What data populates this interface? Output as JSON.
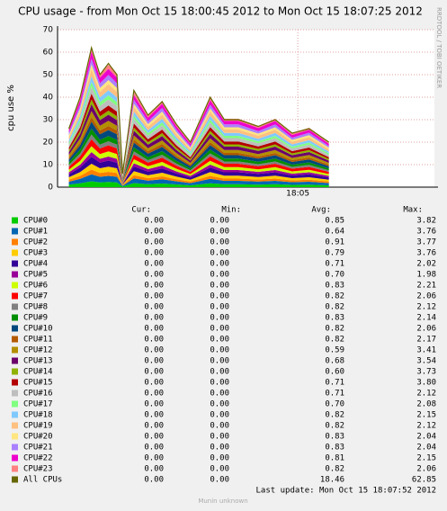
{
  "chart_data": {
    "type": "area",
    "stacked": true,
    "title": "CPU usage - from Mon Oct 15 18:00:45 2012 to Mon Oct 15 18:07:25 2012",
    "ylabel": "cpu use %",
    "side_text": "RRDTOOL / TOBI OETIKER",
    "ylim": [
      0,
      70
    ],
    "yticks": [
      0,
      10,
      20,
      30,
      40,
      50,
      60,
      70
    ],
    "grid": true,
    "xlim": [
      0.75,
      7.4167
    ],
    "xticks": [
      {
        "value": 5,
        "label": "18:05"
      }
    ],
    "x": [
      0.95,
      1.15,
      1.35,
      1.5,
      1.65,
      1.8,
      1.9,
      2.1,
      2.35,
      2.6,
      2.85,
      3.1,
      3.45,
      3.7,
      3.95,
      4.3,
      4.6,
      4.9,
      5.2,
      5.55
    ],
    "series": [
      {
        "name": "CPU#0",
        "color": "#00cc00",
        "values": [
          1.1,
          1.7,
          2.6,
          2.1,
          2.3,
          2.1,
          0.3,
          1.8,
          1.3,
          1.6,
          1.2,
          0.8,
          1.7,
          1.3,
          1.3,
          1.1,
          1.3,
          1.0,
          1.1,
          0.8
        ]
      },
      {
        "name": "CPU#1",
        "color": "#0066b3",
        "values": [
          1.3,
          2.0,
          3.1,
          2.5,
          2.7,
          2.5,
          0.3,
          2.1,
          1.6,
          1.9,
          1.4,
          1.0,
          2.0,
          1.5,
          1.5,
          1.4,
          1.5,
          1.2,
          1.3,
          1.0
        ]
      },
      {
        "name": "CPU#2",
        "color": "#ff8000",
        "values": [
          0.9,
          1.3,
          2.1,
          1.7,
          1.8,
          1.7,
          0.2,
          1.4,
          1.1,
          1.3,
          0.9,
          0.7,
          1.3,
          1.0,
          1.0,
          0.9,
          1.0,
          0.8,
          0.9,
          0.7
        ]
      },
      {
        "name": "CPU#3",
        "color": "#ffcc00",
        "values": [
          1.1,
          1.7,
          2.6,
          2.1,
          2.3,
          2.1,
          0.3,
          1.8,
          1.3,
          1.6,
          1.2,
          0.8,
          1.7,
          1.3,
          1.3,
          1.1,
          1.3,
          1.0,
          1.1,
          0.8
        ]
      },
      {
        "name": "CPU#4",
        "color": "#330099",
        "values": [
          1.3,
          2.0,
          3.1,
          2.5,
          2.7,
          2.5,
          0.3,
          2.1,
          1.6,
          1.9,
          1.4,
          1.0,
          2.0,
          1.5,
          1.5,
          1.4,
          1.5,
          1.2,
          1.3,
          1.0
        ]
      },
      {
        "name": "CPU#5",
        "color": "#990099",
        "values": [
          0.9,
          1.3,
          2.1,
          1.7,
          1.8,
          1.7,
          0.2,
          1.4,
          1.1,
          1.3,
          0.9,
          0.7,
          1.3,
          1.0,
          1.0,
          0.9,
          1.0,
          0.8,
          0.9,
          0.7
        ]
      },
      {
        "name": "CPU#6",
        "color": "#ccff00",
        "values": [
          1.1,
          1.7,
          2.6,
          2.1,
          2.3,
          2.1,
          0.3,
          1.8,
          1.3,
          1.6,
          1.2,
          0.8,
          1.7,
          1.3,
          1.3,
          1.1,
          1.3,
          1.0,
          1.1,
          0.8
        ]
      },
      {
        "name": "CPU#7",
        "color": "#ff0000",
        "values": [
          1.3,
          2.0,
          3.1,
          2.5,
          2.7,
          2.5,
          0.3,
          2.1,
          1.6,
          1.9,
          1.4,
          1.0,
          2.0,
          1.5,
          1.5,
          1.4,
          1.5,
          1.2,
          1.3,
          1.0
        ]
      },
      {
        "name": "CPU#8",
        "color": "#808080",
        "values": [
          0.9,
          1.3,
          2.1,
          1.7,
          1.8,
          1.7,
          0.2,
          1.4,
          1.1,
          1.3,
          0.9,
          0.7,
          1.3,
          1.0,
          1.0,
          0.9,
          1.0,
          0.8,
          0.9,
          0.7
        ]
      },
      {
        "name": "CPU#9",
        "color": "#008f00",
        "values": [
          1.1,
          1.7,
          2.6,
          2.1,
          2.3,
          2.1,
          0.3,
          1.8,
          1.3,
          1.6,
          1.2,
          0.8,
          1.7,
          1.3,
          1.3,
          1.1,
          1.3,
          1.0,
          1.1,
          0.8
        ]
      },
      {
        "name": "CPU#10",
        "color": "#00487d",
        "values": [
          1.3,
          2.0,
          3.1,
          2.5,
          2.7,
          2.5,
          0.3,
          2.1,
          1.6,
          1.9,
          1.4,
          1.0,
          2.0,
          1.5,
          1.5,
          1.4,
          1.5,
          1.2,
          1.3,
          1.0
        ]
      },
      {
        "name": "CPU#11",
        "color": "#b35a00",
        "values": [
          0.9,
          1.3,
          2.1,
          1.7,
          1.8,
          1.7,
          0.2,
          1.4,
          1.1,
          1.3,
          0.9,
          0.7,
          1.3,
          1.0,
          1.0,
          0.9,
          1.0,
          0.8,
          0.9,
          0.7
        ]
      },
      {
        "name": "CPU#12",
        "color": "#b38f00",
        "values": [
          1.1,
          1.7,
          2.6,
          2.1,
          2.3,
          2.1,
          0.3,
          1.8,
          1.3,
          1.6,
          1.2,
          0.8,
          1.7,
          1.3,
          1.3,
          1.1,
          1.3,
          1.0,
          1.1,
          0.8
        ]
      },
      {
        "name": "CPU#13",
        "color": "#6b006b",
        "values": [
          1.3,
          2.0,
          3.1,
          2.5,
          2.7,
          2.5,
          0.3,
          2.1,
          1.6,
          1.9,
          1.4,
          1.0,
          2.0,
          1.5,
          1.5,
          1.4,
          1.5,
          1.2,
          1.3,
          1.0
        ]
      },
      {
        "name": "CPU#14",
        "color": "#8fb300",
        "values": [
          0.9,
          1.3,
          2.1,
          1.7,
          1.8,
          1.7,
          0.2,
          1.4,
          1.1,
          1.3,
          0.9,
          0.7,
          1.3,
          1.0,
          1.0,
          0.9,
          1.0,
          0.8,
          0.9,
          0.7
        ]
      },
      {
        "name": "CPU#15",
        "color": "#b30000",
        "values": [
          1.1,
          1.7,
          2.6,
          2.1,
          2.3,
          2.1,
          0.3,
          1.8,
          1.3,
          1.6,
          1.2,
          0.8,
          1.7,
          1.3,
          1.3,
          1.1,
          1.3,
          1.0,
          1.1,
          0.8
        ]
      },
      {
        "name": "CPU#16",
        "color": "#bebebe",
        "values": [
          1.3,
          2.0,
          3.1,
          2.5,
          2.7,
          2.5,
          0.3,
          2.1,
          1.6,
          1.9,
          1.4,
          1.0,
          2.0,
          1.5,
          1.5,
          1.4,
          1.5,
          1.2,
          1.3,
          1.0
        ]
      },
      {
        "name": "CPU#17",
        "color": "#80ff80",
        "values": [
          0.9,
          1.3,
          2.1,
          1.7,
          1.8,
          1.7,
          0.2,
          1.4,
          1.1,
          1.3,
          0.9,
          0.7,
          1.3,
          1.0,
          1.0,
          0.9,
          1.0,
          0.8,
          0.9,
          0.7
        ]
      },
      {
        "name": "CPU#18",
        "color": "#80c9ff",
        "values": [
          1.1,
          1.7,
          2.6,
          2.1,
          2.3,
          2.1,
          0.3,
          1.8,
          1.3,
          1.6,
          1.2,
          0.8,
          1.7,
          1.3,
          1.3,
          1.1,
          1.3,
          1.0,
          1.1,
          0.8
        ]
      },
      {
        "name": "CPU#19",
        "color": "#ffc080",
        "values": [
          1.3,
          2.0,
          3.1,
          2.5,
          2.7,
          2.5,
          0.3,
          2.1,
          1.6,
          1.9,
          1.4,
          1.0,
          2.0,
          1.5,
          1.5,
          1.4,
          1.5,
          1.2,
          1.3,
          1.0
        ]
      },
      {
        "name": "CPU#20",
        "color": "#ffe680",
        "values": [
          0.9,
          1.3,
          2.1,
          1.7,
          1.8,
          1.7,
          0.2,
          1.4,
          1.1,
          1.3,
          0.9,
          0.7,
          1.3,
          1.0,
          1.0,
          0.9,
          1.0,
          0.8,
          0.9,
          0.7
        ]
      },
      {
        "name": "CPU#21",
        "color": "#aa80ff",
        "values": [
          1.1,
          1.7,
          2.6,
          2.1,
          2.3,
          2.1,
          0.3,
          1.8,
          1.3,
          1.6,
          1.2,
          0.8,
          1.7,
          1.3,
          1.3,
          1.1,
          1.3,
          1.0,
          1.1,
          0.8
        ]
      },
      {
        "name": "CPU#22",
        "color": "#ee00cc",
        "values": [
          1.3,
          2.0,
          3.1,
          2.5,
          2.7,
          2.5,
          0.3,
          2.1,
          1.6,
          1.9,
          1.4,
          1.0,
          2.0,
          1.5,
          1.5,
          1.4,
          1.5,
          1.2,
          1.3,
          1.0
        ]
      },
      {
        "name": "CPU#23",
        "color": "#ff8080",
        "values": [
          0.9,
          1.3,
          2.1,
          1.7,
          1.8,
          1.7,
          0.2,
          1.4,
          1.1,
          1.3,
          0.9,
          0.7,
          1.3,
          1.0,
          1.0,
          0.9,
          1.0,
          0.8,
          0.9,
          0.7
        ]
      },
      {
        "name": "All CPUs",
        "color": "#666600",
        "type": "line",
        "values": [
          26,
          40,
          62,
          50,
          55,
          50,
          6,
          43,
          32,
          38,
          28,
          20,
          40,
          30,
          30,
          27,
          30,
          24,
          26,
          20
        ]
      }
    ]
  },
  "table": {
    "headers": [
      "Cur:",
      "Min:",
      "Avg:",
      "Max:"
    ],
    "rows": [
      [
        "0.00",
        "0.00",
        "0.85",
        "3.82"
      ],
      [
        "0.00",
        "0.00",
        "0.64",
        "3.76"
      ],
      [
        "0.00",
        "0.00",
        "0.91",
        "3.77"
      ],
      [
        "0.00",
        "0.00",
        "0.79",
        "3.76"
      ],
      [
        "0.00",
        "0.00",
        "0.71",
        "2.02"
      ],
      [
        "0.00",
        "0.00",
        "0.70",
        "1.98"
      ],
      [
        "0.00",
        "0.00",
        "0.83",
        "2.21"
      ],
      [
        "0.00",
        "0.00",
        "0.82",
        "2.06"
      ],
      [
        "0.00",
        "0.00",
        "0.82",
        "2.12"
      ],
      [
        "0.00",
        "0.00",
        "0.83",
        "2.14"
      ],
      [
        "0.00",
        "0.00",
        "0.82",
        "2.06"
      ],
      [
        "0.00",
        "0.00",
        "0.82",
        "2.17"
      ],
      [
        "0.00",
        "0.00",
        "0.59",
        "3.41"
      ],
      [
        "0.00",
        "0.00",
        "0.68",
        "3.54"
      ],
      [
        "0.00",
        "0.00",
        "0.60",
        "3.73"
      ],
      [
        "0.00",
        "0.00",
        "0.71",
        "3.80"
      ],
      [
        "0.00",
        "0.00",
        "0.71",
        "2.12"
      ],
      [
        "0.00",
        "0.00",
        "0.70",
        "2.08"
      ],
      [
        "0.00",
        "0.00",
        "0.82",
        "2.15"
      ],
      [
        "0.00",
        "0.00",
        "0.82",
        "2.12"
      ],
      [
        "0.00",
        "0.00",
        "0.83",
        "2.04"
      ],
      [
        "0.00",
        "0.00",
        "0.83",
        "2.04"
      ],
      [
        "0.00",
        "0.00",
        "0.81",
        "2.15"
      ],
      [
        "0.00",
        "0.00",
        "0.82",
        "2.06"
      ],
      [
        "0.00",
        "0.00",
        "18.46",
        "62.85"
      ]
    ]
  },
  "last_update": "Last update:  Mon Oct 15 18:07:52 2012",
  "footer": "Munin unknown"
}
